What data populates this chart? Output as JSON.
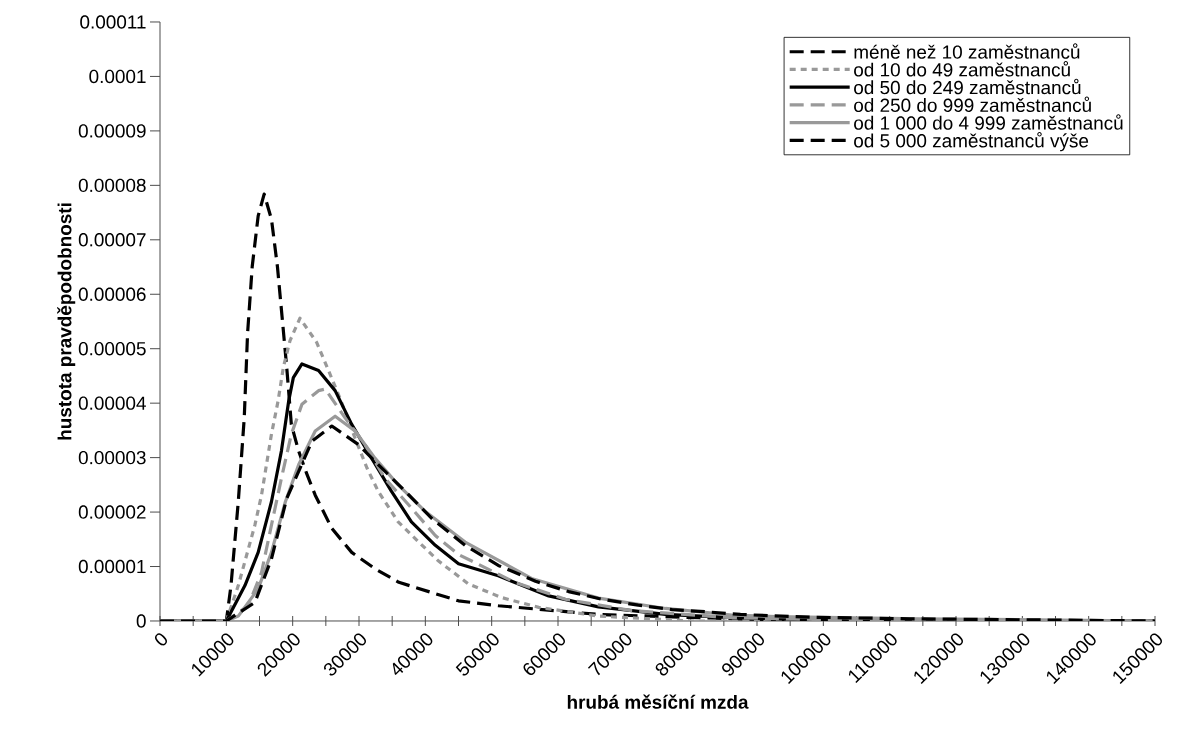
{
  "chart_data": {
    "type": "line",
    "xlabel": "hrubá měsíční mzda",
    "ylabel": "hustota pravděpodobnosti",
    "xlim": [
      0,
      150000
    ],
    "ylim": [
      0,
      0.00011
    ],
    "xticks": [
      0,
      {
        "value": 5000,
        "label": null
      },
      10000,
      {
        "value": 15000,
        "label": null
      },
      20000,
      {
        "value": 25000,
        "label": null
      },
      30000,
      {
        "value": 35000,
        "label": null
      },
      40000,
      {
        "value": 45000,
        "label": null
      },
      50000,
      {
        "value": 55000,
        "label": null
      },
      60000,
      {
        "value": 65000,
        "label": null
      },
      70000,
      {
        "value": 75000,
        "label": null
      },
      80000,
      {
        "value": 85000,
        "label": null
      },
      90000,
      {
        "value": 95000,
        "label": null
      },
      100000,
      {
        "value": 105000,
        "label": null
      },
      110000,
      {
        "value": 115000,
        "label": null
      },
      120000,
      {
        "value": 125000,
        "label": null
      },
      130000,
      {
        "value": 135000,
        "label": null
      },
      140000,
      {
        "value": 145000,
        "label": null
      },
      150000
    ],
    "yticks": [
      0,
      {
        "value": 1e-05,
        "label": "0.00001"
      },
      {
        "value": 2e-05,
        "label": "0.00002"
      },
      {
        "value": 3e-05,
        "label": "0.00003"
      },
      {
        "value": 4e-05,
        "label": "0.00004"
      },
      {
        "value": 5e-05,
        "label": "0.00005"
      },
      {
        "value": 6e-05,
        "label": "0.00006"
      },
      {
        "value": 7e-05,
        "label": "0.00007"
      },
      {
        "value": 8e-05,
        "label": "0.00008"
      },
      {
        "value": 9e-05,
        "label": "0.00009"
      },
      {
        "value": 0.0001,
        "label": "0.0001"
      },
      {
        "value": 0.00011,
        "label": "0.00011"
      }
    ],
    "grid": false,
    "legend": "top right",
    "marker": "none",
    "series": [
      {
        "name": "méně než 10 zaměstnanců",
        "color": "#000000",
        "line_style": "dashed",
        "x": [
          0,
          10000,
          10700,
          11800,
          12700,
          13200,
          13900,
          14800,
          15700,
          16800,
          17700,
          18400,
          19100,
          19800,
          20900,
          22100,
          23400,
          25900,
          28900,
          32400,
          36000,
          45000,
          51000,
          66100,
          81200,
          100000,
          150000
        ],
        "values": [
          0,
          0,
          6.5e-06,
          2.19e-05,
          3.73e-05,
          5.28e-05,
          6.51e-05,
          7.44e-05,
          7.84e-05,
          7.38e-05,
          6.51e-05,
          5.59e-05,
          4.66e-05,
          3.61e-05,
          3.12e-05,
          2.71e-05,
          2.31e-05,
          1.7e-05,
          1.26e-05,
          9.6e-06,
          7.1e-06,
          3.7e-06,
          2.8e-06,
          1.2e-06,
          6e-07,
          0,
          0
        ]
      },
      {
        "name": "od 10 do 49 zaměstnanců",
        "color": "#999999",
        "line_style": "dotted",
        "x": [
          0,
          10000,
          11800,
          14300,
          15300,
          16800,
          17800,
          18600,
          19600,
          21100,
          23600,
          25400,
          27100,
          29400,
          31200,
          32900,
          35900,
          39000,
          42000,
          46500,
          51500,
          57100,
          66100,
          80000,
          150000
        ],
        "values": [
          0,
          0,
          6.5e-06,
          1.76e-05,
          2.31e-05,
          3.43e-05,
          4.04e-05,
          4.66e-05,
          5.15e-05,
          5.56e-05,
          5.12e-05,
          4.6e-05,
          4.1e-05,
          3.36e-05,
          2.81e-05,
          2.38e-05,
          1.82e-05,
          1.45e-05,
          1.1e-05,
          6.8e-06,
          4.3e-06,
          2.5e-06,
          9e-07,
          0,
          0
        ]
      },
      {
        "name": "od 50 do 249 zaměstnanců",
        "color": "#000000",
        "line_style": "solid",
        "x": [
          0,
          10000,
          12800,
          14800,
          16800,
          18300,
          19400,
          20100,
          21400,
          23900,
          26400,
          28900,
          31900,
          34900,
          37900,
          41500,
          45000,
          51000,
          58600,
          66100,
          76200,
          86200,
          105000,
          150000
        ],
        "values": [
          0,
          0,
          6.5e-06,
          1.26e-05,
          2.19e-05,
          3.12e-05,
          4.04e-05,
          4.47e-05,
          4.72e-05,
          4.6e-05,
          4.23e-05,
          3.61e-05,
          2.99e-05,
          2.38e-05,
          1.82e-05,
          1.39e-05,
          1.05e-05,
          8.3e-06,
          4.6e-06,
          2.6e-06,
          1.2e-06,
          6e-07,
          0,
          0
        ]
      },
      {
        "name": "od 250 do 999 zaměstnanců",
        "color": "#999999",
        "line_style": "dashed",
        "x": [
          0,
          10000,
          13300,
          15300,
          16800,
          18300,
          19800,
          21400,
          23900,
          24900,
          27900,
          30900,
          33900,
          37500,
          41500,
          45000,
          53500,
          61100,
          71100,
          86200,
          110000,
          150000
        ],
        "values": [
          0,
          0,
          2.8e-06,
          8.9e-06,
          1.76e-05,
          2.62e-05,
          3.43e-05,
          3.98e-05,
          4.23e-05,
          4.26e-05,
          3.73e-05,
          3.24e-05,
          2.62e-05,
          2.13e-05,
          1.57e-05,
          1.22e-05,
          7.1e-06,
          4e-06,
          1.9e-06,
          6e-07,
          0,
          0
        ]
      },
      {
        "name": "od 1 000 do 4 999 zaměstnanců",
        "color": "#999999",
        "line_style": "solid",
        "x": [
          0,
          10000,
          11800,
          14800,
          16800,
          18900,
          20900,
          23400,
          26400,
          29400,
          32400,
          35900,
          40000,
          46000,
          56000,
          66100,
          76200,
          86200,
          93000,
          114500,
          150000
        ],
        "values": [
          0,
          0,
          9e-07,
          5.9e-06,
          1.26e-05,
          2.19e-05,
          2.87e-05,
          3.49e-05,
          3.76e-05,
          3.49e-05,
          2.99e-05,
          2.5e-05,
          2.01e-05,
          1.45e-05,
          7.8e-06,
          4.2e-06,
          2.3e-06,
          1.1e-06,
          8e-07,
          4e-07,
          0
        ]
      },
      {
        "name": "od 5 000 zaměstnanců výše",
        "color": "#000000",
        "line_style": "dashed",
        "x": [
          0,
          10000,
          14300,
          16800,
          19100,
          22900,
          25900,
          29900,
          33900,
          37000,
          41000,
          46000,
          51000,
          56600,
          61600,
          66600,
          72100,
          77200,
          82200,
          87500,
          97900,
          113000,
          150000
        ],
        "values": [
          0,
          0,
          3.4e-06,
          1.14e-05,
          2.25e-05,
          3.3e-05,
          3.58e-05,
          3.24e-05,
          2.75e-05,
          2.38e-05,
          1.88e-05,
          1.39e-05,
          1.02e-05,
          7.3e-06,
          5.4e-06,
          4e-06,
          2.9e-06,
          2.1e-06,
          1.7e-06,
          1.2e-06,
          7e-07,
          4e-07,
          0
        ]
      }
    ]
  }
}
